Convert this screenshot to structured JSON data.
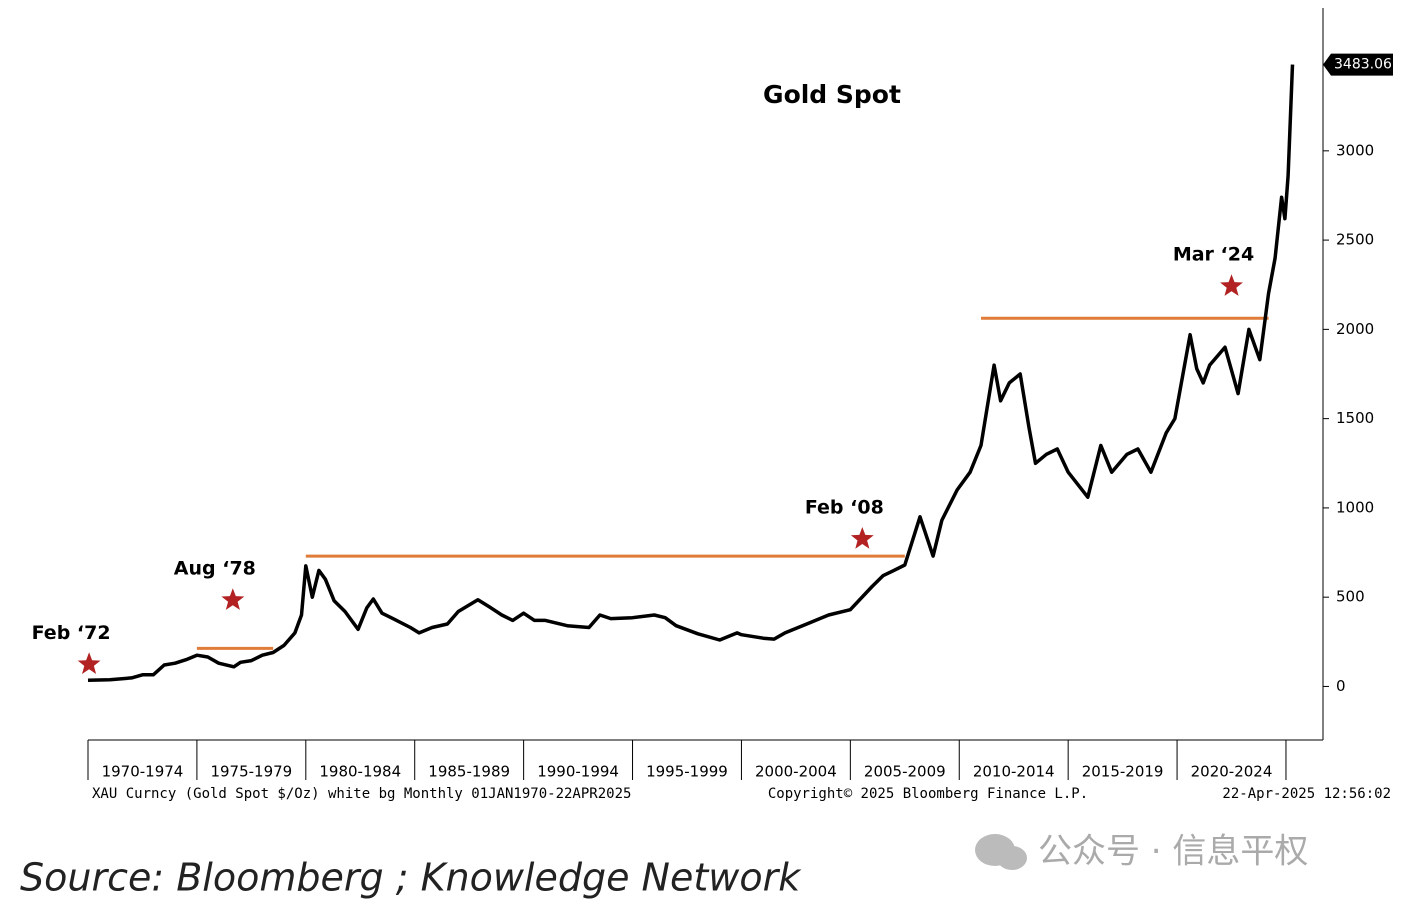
{
  "chart_data": {
    "type": "line",
    "title": "Gold Spot",
    "series": [
      {
        "name": "XAU Curncy",
        "color": "#000000",
        "x": [
          1970,
          1971,
          1972,
          1972.5,
          1973,
          1973.5,
          1974,
          1974.5,
          1975,
          1975.5,
          1976,
          1976.7,
          1977,
          1977.5,
          1978,
          1978.5,
          1979,
          1979.5,
          1979.8,
          1980.0,
          1980.3,
          1980.6,
          1980.9,
          1981.3,
          1981.8,
          1982.4,
          1982.8,
          1983.1,
          1983.5,
          1984,
          1984.8,
          1985.2,
          1985.8,
          1986.5,
          1987,
          1987.9,
          1988.5,
          1989,
          1989.5,
          1990,
          1990.5,
          1991,
          1992,
          1993,
          1993.5,
          1994,
          1995,
          1996,
          1996.5,
          1997,
          1998,
          1999,
          1999.8,
          2000,
          2001,
          2001.5,
          2002,
          2003,
          2004,
          2005,
          2006,
          2006.5,
          2007,
          2007.5,
          2008.2,
          2008.8,
          2009.2,
          2009.9,
          2010.5,
          2011,
          2011.6,
          2011.9,
          2012.3,
          2012.8,
          2013.2,
          2013.5,
          2014,
          2014.5,
          2015,
          2015.9,
          2016.5,
          2017,
          2017.7,
          2018.2,
          2018.8,
          2019.5,
          2019.9,
          2020.6,
          2020.9,
          2021.2,
          2021.5,
          2022.2,
          2022.8,
          2023.3,
          2023.8,
          2024.2,
          2024.5,
          2024.8,
          2024.95,
          2025.1,
          2025.3
        ],
        "values": [
          35,
          38,
          48,
          65,
          65,
          120,
          130,
          150,
          175,
          165,
          130,
          110,
          135,
          145,
          175,
          190,
          230,
          300,
          400,
          675,
          500,
          650,
          600,
          480,
          420,
          320,
          440,
          490,
          410,
          380,
          330,
          300,
          330,
          350,
          420,
          485,
          440,
          400,
          370,
          410,
          370,
          370,
          340,
          330,
          400,
          380,
          385,
          400,
          385,
          340,
          295,
          260,
          300,
          290,
          270,
          265,
          300,
          350,
          400,
          430,
          560,
          620,
          650,
          680,
          950,
          730,
          930,
          1100,
          1200,
          1350,
          1800,
          1600,
          1700,
          1750,
          1450,
          1250,
          1300,
          1330,
          1200,
          1060,
          1350,
          1200,
          1300,
          1330,
          1200,
          1420,
          1500,
          1970,
          1780,
          1700,
          1800,
          1900,
          1640,
          2000,
          1830,
          2200,
          2400,
          2740,
          2620,
          2860,
          3483.06
        ]
      }
    ],
    "xlim": [
      1970,
      2026.7
    ],
    "xticks": [
      {
        "value": 1972.5,
        "label": "1970-1974"
      },
      {
        "value": 1977.5,
        "label": "1975-1979"
      },
      {
        "value": 1982.5,
        "label": "1980-1984"
      },
      {
        "value": 1987.5,
        "label": "1985-1989"
      },
      {
        "value": 1992.5,
        "label": "1990-1994"
      },
      {
        "value": 1997.5,
        "label": "1995-1999"
      },
      {
        "value": 2002.5,
        "label": "2000-2004"
      },
      {
        "value": 2007.5,
        "label": "2005-2009"
      },
      {
        "value": 2012.5,
        "label": "2010-2014"
      },
      {
        "value": 2017.5,
        "label": "2015-2019"
      },
      {
        "value": 2022.5,
        "label": "2020-2024"
      }
    ],
    "ylim": [
      -300,
      3800
    ],
    "yticks": [
      0,
      500,
      1000,
      1500,
      2000,
      2500,
      3000
    ],
    "reference_lines": [
      {
        "x": [
          1975,
          1978.5
        ],
        "y": 213,
        "color": "#e07b39"
      },
      {
        "x": [
          1980,
          2007.5
        ],
        "y": 730,
        "color": "#e07b39"
      },
      {
        "x": [
          2011,
          2024.2
        ],
        "y": 2062,
        "color": "#e07b39"
      }
    ],
    "annotations": [
      {
        "label": "Feb ‘72",
        "x": 1970.05,
        "y": 124
      },
      {
        "label": "Aug ‘78",
        "x": 1976.65,
        "y": 483
      },
      {
        "label": "Feb ‘08",
        "x": 2005.55,
        "y": 826
      },
      {
        "label": "Mar ‘24",
        "x": 2022.5,
        "y": 2242
      }
    ],
    "star_color": "#b22222",
    "footer_left": "XAU Curncy (Gold Spot  $/Oz) white bg  Monthly 01JAN1970-22APR2025",
    "footer_center": "Copyright© 2025 Bloomberg Finance L.P.",
    "footer_right": "22-Apr-2025 12:56:02"
  },
  "source": "Source: Bloomberg ; Knowledge Network",
  "watermark": "公众号 · 信息平权"
}
